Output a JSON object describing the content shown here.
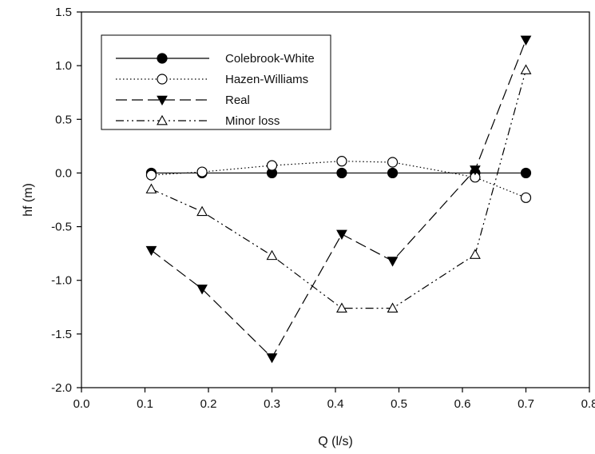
{
  "chart_data": {
    "type": "line",
    "title": "",
    "xlabel": "Q (l/s)",
    "ylabel": "hf (m)",
    "xlim": [
      0.0,
      0.8
    ],
    "ylim": [
      -2.0,
      1.5
    ],
    "x_ticks": [
      "0.0",
      "0.1",
      "0.2",
      "0.3",
      "0.4",
      "0.5",
      "0.6",
      "0.7",
      "0.8"
    ],
    "y_ticks": [
      "-2.0",
      "-1.5",
      "-1.0",
      "-0.5",
      "0.0",
      "0.5",
      "1.0",
      "1.5"
    ],
    "grid": false,
    "legend_position": "top-left",
    "x": [
      0.11,
      0.19,
      0.3,
      0.41,
      0.49,
      0.62,
      0.7
    ],
    "series": [
      {
        "name": "Colebrook-White",
        "marker": "filled-circle",
        "line": "solid",
        "values": [
          0.0,
          0.0,
          0.0,
          0.0,
          0.0,
          0.0,
          0.0
        ]
      },
      {
        "name": "Hazen-Williams",
        "marker": "open-circle",
        "line": "dotted",
        "values": [
          -0.02,
          0.01,
          0.07,
          0.11,
          0.1,
          -0.04,
          -0.23
        ]
      },
      {
        "name": "Real",
        "marker": "filled-triangle-down",
        "line": "dashed",
        "values": [
          -0.72,
          -1.08,
          -1.72,
          -0.57,
          -0.82,
          0.03,
          1.24
        ]
      },
      {
        "name": "Minor loss",
        "marker": "open-triangle-up",
        "line": "dash-dot-dot",
        "values": [
          -0.15,
          -0.36,
          -0.77,
          -1.26,
          -1.26,
          -0.76,
          0.96
        ]
      }
    ],
    "colors": {
      "line": "#000000",
      "background": "#ffffff"
    }
  }
}
